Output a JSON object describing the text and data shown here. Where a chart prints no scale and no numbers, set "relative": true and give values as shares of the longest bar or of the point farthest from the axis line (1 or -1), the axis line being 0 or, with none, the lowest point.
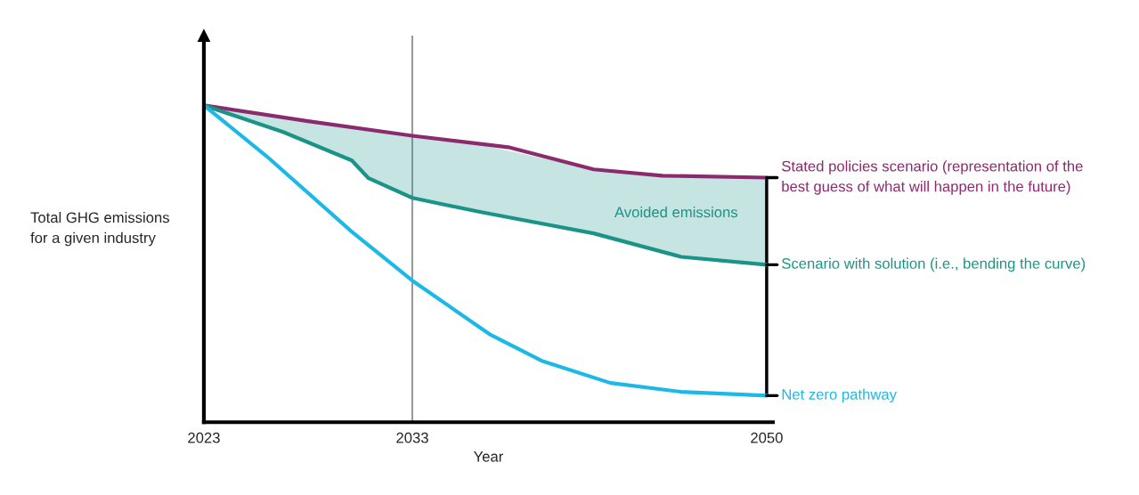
{
  "chart_data": {
    "type": "line",
    "relative": true,
    "xlabel": "Year",
    "ylabel": "Total GHG emissions\nfor a given industry",
    "xlim": [
      2023,
      2050.3
    ],
    "xticks": [
      2023,
      2033,
      2050
    ],
    "grid": false,
    "legend": false,
    "marker": "none",
    "line_style": "solid",
    "series": [
      {
        "name": "Stated policies scenario (representation of the\nbest guess of what will happen in the future)",
        "color": "#8b2a6e",
        "x": [
          2023,
          2028,
          2033,
          2037.6,
          2041.7,
          2045,
          2050
        ],
        "values": [
          1,
          0.95,
          0.904,
          0.868,
          0.798,
          0.778,
          0.772
        ]
      },
      {
        "name": "Scenario with solution (i.e., bending the curve)",
        "color": "#1a9488",
        "x": [
          2023,
          2026.8,
          2030.1,
          2030.9,
          2033,
          2036.3,
          2041.7,
          2045.9,
          2050
        ],
        "values": [
          1,
          0.916,
          0.826,
          0.77,
          0.708,
          0.663,
          0.596,
          0.522,
          0.497
        ],
        "lower": [
          1,
          0.916,
          0.826,
          0.77,
          0.708,
          0.663,
          0.596,
          0.522,
          0.497
        ],
        "upper": [
          1,
          0.96,
          0.93,
          0.92,
          0.904,
          0.875,
          0.798,
          0.778,
          0.772
        ]
      },
      {
        "name": "Net zero pathway",
        "color": "#1cb8e8",
        "x": [
          2023,
          2026,
          2030.1,
          2033,
          2036.7,
          2039.2,
          2042.5,
          2045.9,
          2050
        ],
        "values": [
          1,
          0.84,
          0.601,
          0.447,
          0.278,
          0.194,
          0.124,
          0.096,
          0.084
        ]
      }
    ],
    "ref_lines": [
      {
        "axis": "x",
        "value": 2033,
        "color": "#9a9a9a"
      }
    ],
    "annotations": [
      "Avoided emissions"
    ]
  }
}
